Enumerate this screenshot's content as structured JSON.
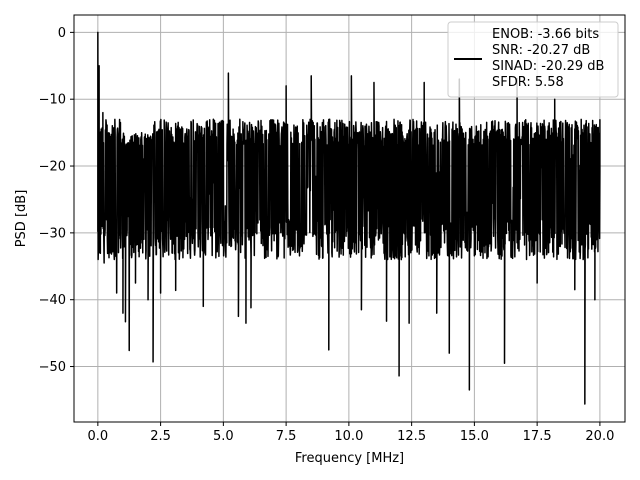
{
  "chart_data": {
    "type": "line",
    "title": "",
    "xlabel": "Frequency [MHz]",
    "ylabel": "PSD [dB]",
    "xlim": [
      -0.95,
      21.0
    ],
    "ylim": [
      -58.3,
      2.6
    ],
    "x_ticks": [
      0.0,
      2.5,
      5.0,
      7.5,
      10.0,
      12.5,
      15.0,
      17.5,
      20.0
    ],
    "x_tick_labels": [
      "0.0",
      "2.5",
      "5.0",
      "7.5",
      "10.0",
      "12.5",
      "15.0",
      "17.5",
      "20.0"
    ],
    "y_ticks": [
      0,
      -10,
      -20,
      -30,
      -40,
      -50
    ],
    "y_tick_labels": [
      "0",
      "−10",
      "−20",
      "−30",
      "−40",
      "−50"
    ],
    "grid": true,
    "legend_position": "top-right",
    "line_color": "#000000",
    "legend": {
      "lines": [
        "ENOB: -3.66 bits",
        "SNR: -20.27 dB",
        "SINAD: -20.29 dB",
        "SFDR: 5.58"
      ]
    },
    "series": [
      {
        "x_range": [
          0.0,
          20.0
        ],
        "noise_floor_db": [
          -28,
          -14
        ],
        "envelope_points": [
          [
            0.0,
            0.0
          ],
          [
            0.05,
            -5.0
          ],
          [
            0.1,
            -23.3
          ],
          [
            0.2,
            -12.0
          ],
          [
            0.25,
            -34.5
          ],
          [
            0.5,
            -33.0
          ],
          [
            0.75,
            -39.0
          ],
          [
            1.0,
            -42.0
          ],
          [
            1.1,
            -43.3
          ],
          [
            1.25,
            -47.6
          ],
          [
            1.5,
            -37.5
          ],
          [
            2.0,
            -40.0
          ],
          [
            2.2,
            -49.3
          ],
          [
            2.5,
            -39.0
          ],
          [
            3.1,
            -38.6
          ],
          [
            3.2,
            -14.7
          ],
          [
            4.2,
            -41.0
          ],
          [
            4.6,
            -13.0
          ],
          [
            5.0,
            -13.3
          ],
          [
            5.2,
            -6.1
          ],
          [
            5.6,
            -42.5
          ],
          [
            5.9,
            -43.5
          ],
          [
            6.1,
            -41.2
          ],
          [
            7.5,
            -8.0
          ],
          [
            8.5,
            -6.5
          ],
          [
            9.2,
            -47.5
          ],
          [
            10.1,
            -6.5
          ],
          [
            10.5,
            -41.5
          ],
          [
            11.0,
            -7.5
          ],
          [
            11.5,
            -43.2
          ],
          [
            12.0,
            -51.4
          ],
          [
            12.4,
            -43.5
          ],
          [
            13.0,
            -7.5
          ],
          [
            13.5,
            -42.0
          ],
          [
            14.0,
            -48.0
          ],
          [
            14.4,
            -7.0
          ],
          [
            14.8,
            -53.5
          ],
          [
            16.2,
            -49.5
          ],
          [
            16.7,
            -6.9
          ],
          [
            17.5,
            -37.5
          ],
          [
            18.2,
            -10.0
          ],
          [
            19.0,
            -38.5
          ],
          [
            19.4,
            -55.6
          ],
          [
            19.8,
            -40.0
          ],
          [
            20.0,
            -13.0
          ]
        ]
      }
    ]
  }
}
